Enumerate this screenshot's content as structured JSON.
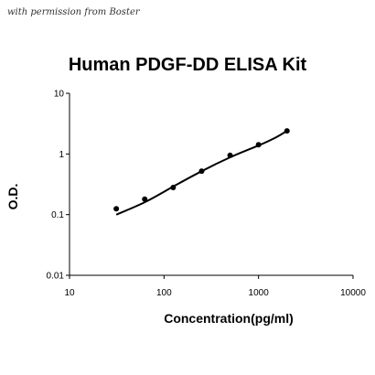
{
  "watermark": "with permission from Boster",
  "chart_data": {
    "type": "scatter",
    "title": "Human PDGF-DD ELISA Kit",
    "xlabel": "Concentration(pg/ml)",
    "ylabel": "O.D.",
    "xscale": "log",
    "yscale": "log",
    "xlim": [
      10,
      10000
    ],
    "ylim": [
      0.01,
      10
    ],
    "xticks": [
      10,
      100,
      1000,
      10000
    ],
    "xtick_labels": [
      "10",
      "100",
      "1000",
      "10000"
    ],
    "yticks": [
      0.01,
      0.1,
      1,
      10
    ],
    "ytick_labels": [
      "0.01",
      "0.1",
      "1",
      "10"
    ],
    "grid": false,
    "series": [
      {
        "x": [
          31.25,
          62.5,
          125,
          250,
          500,
          1000,
          2000
        ],
        "y": [
          0.125,
          0.18,
          0.28,
          0.52,
          0.95,
          1.42,
          2.4
        ]
      }
    ],
    "fit_curve": {
      "x": [
        31.25,
        62.5,
        125,
        250,
        500,
        1000,
        1500,
        2000
      ],
      "y": [
        0.1,
        0.16,
        0.29,
        0.52,
        0.88,
        1.38,
        1.85,
        2.4
      ]
    }
  }
}
